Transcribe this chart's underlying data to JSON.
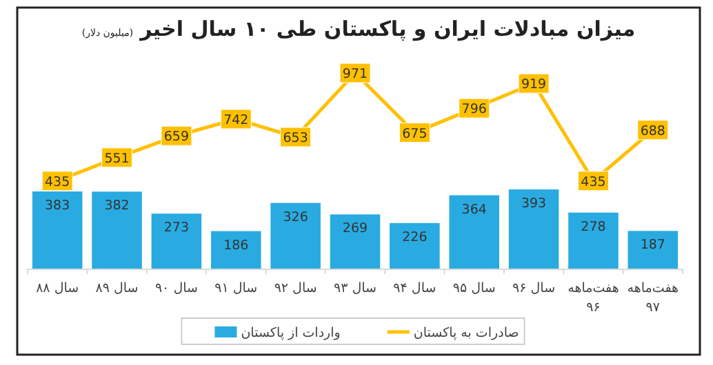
{
  "chart_data": {
    "type": "bar",
    "title": "میزان مبادلات ایران و پاکستان طی ۱۰ سال اخیر",
    "subtitle": "(میلیون دلار)",
    "categories": [
      "سال ۸۸",
      "سال ۸۹",
      "سال ۹۰",
      "سال ۹۱",
      "سال ۹۲",
      "سال ۹۳",
      "سال ۹۴",
      "سال ۹۵",
      "سال ۹۶",
      "هفت‌ماهه ۹۶",
      "هفت‌ماهه ۹۷"
    ],
    "series": [
      {
        "name": "واردات از پاکستان",
        "color": "#29abe2",
        "values": [
          383,
          382,
          273,
          186,
          326,
          269,
          226,
          364,
          393,
          278,
          187
        ]
      },
      {
        "name": "صادرات به پاکستان",
        "type": "line",
        "color": "#ffc000",
        "values": [
          435,
          551,
          659,
          742,
          653,
          971,
          675,
          796,
          919,
          435,
          688
        ]
      }
    ],
    "marker": "square",
    "data_labels": true,
    "legend": "bottom"
  }
}
